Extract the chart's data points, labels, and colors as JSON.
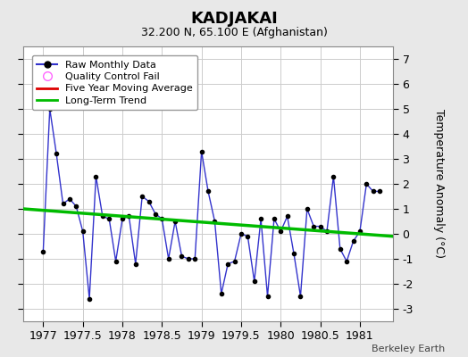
{
  "title": "KADJAKAI",
  "subtitle": "32.200 N, 65.100 E (Afghanistan)",
  "ylabel": "Temperature Anomaly (°C)",
  "credit": "Berkeley Earth",
  "xlim": [
    1976.75,
    1981.42
  ],
  "ylim": [
    -3.5,
    7.5
  ],
  "yticks": [
    -3,
    -2,
    -1,
    0,
    1,
    2,
    3,
    4,
    5,
    6,
    7
  ],
  "xticks": [
    1977,
    1977.5,
    1978,
    1978.5,
    1979,
    1979.5,
    1980,
    1980.5,
    1981
  ],
  "xtick_labels": [
    "1977",
    "1977.5",
    "1978",
    "1978.5",
    "1979",
    "1979.5",
    "1980",
    "1980.5",
    "1981"
  ],
  "background_color": "#e8e8e8",
  "plot_bg_color": "#ffffff",
  "line_color": "#3333cc",
  "marker_color": "#000000",
  "trend_color": "#00bb00",
  "moving_avg_color": "#dd0000",
  "qc_color": "#ff66ff",
  "raw_x": [
    1977.0,
    1977.0833,
    1977.1667,
    1977.25,
    1977.3333,
    1977.4167,
    1977.5,
    1977.5833,
    1977.6667,
    1977.75,
    1977.8333,
    1977.9167,
    1978.0,
    1978.0833,
    1978.1667,
    1978.25,
    1978.3333,
    1978.4167,
    1978.5,
    1978.5833,
    1978.6667,
    1978.75,
    1978.8333,
    1978.9167,
    1979.0,
    1979.0833,
    1979.1667,
    1979.25,
    1979.3333,
    1979.4167,
    1979.5,
    1979.5833,
    1979.6667,
    1979.75,
    1979.8333,
    1979.9167,
    1980.0,
    1980.0833,
    1980.1667,
    1980.25,
    1980.3333,
    1980.4167,
    1980.5,
    1980.5833,
    1980.6667,
    1980.75,
    1980.8333,
    1980.9167,
    1981.0,
    1981.0833,
    1981.1667,
    1981.25
  ],
  "raw_y": [
    -0.7,
    5.0,
    3.2,
    1.2,
    1.4,
    1.1,
    0.1,
    -2.6,
    2.3,
    0.7,
    0.6,
    -1.1,
    0.6,
    0.7,
    -1.2,
    1.5,
    1.3,
    0.8,
    0.6,
    -1.0,
    0.5,
    -0.9,
    -1.0,
    -1.0,
    3.3,
    1.7,
    0.5,
    -2.4,
    -1.2,
    -1.1,
    0.0,
    -0.1,
    -1.9,
    0.6,
    -2.5,
    0.6,
    0.1,
    0.7,
    -0.8,
    -2.5,
    1.0,
    0.3,
    0.3,
    0.1,
    2.3,
    -0.6,
    -1.1,
    -0.3,
    0.1,
    2.0,
    1.7,
    1.7
  ],
  "trend_x": [
    1976.75,
    1981.42
  ],
  "trend_y": [
    1.0,
    -0.1
  ],
  "legend_labels": [
    "Raw Monthly Data",
    "Quality Control Fail",
    "Five Year Moving Average",
    "Long-Term Trend"
  ],
  "legend_colors": [
    "#3333cc",
    "#ff66ff",
    "#dd0000",
    "#00bb00"
  ]
}
